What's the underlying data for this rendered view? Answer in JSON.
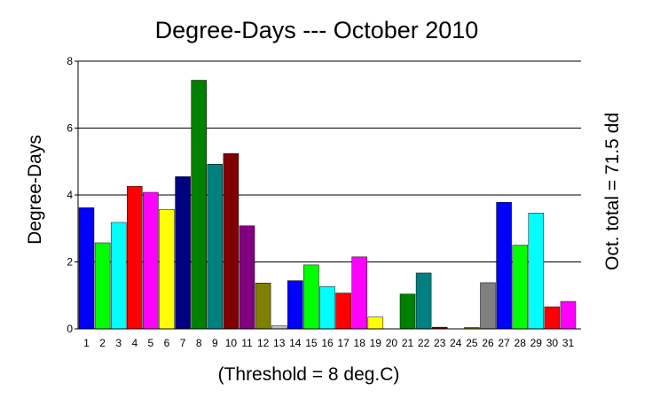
{
  "chart_data": {
    "type": "bar",
    "title": "Degree-Days --- October 2010",
    "ylabel": "Degree-Days",
    "xlabel": "(Threshold = 8 deg.C)",
    "right_label": "Oct. total = 71.5 dd",
    "ylim": [
      0,
      8
    ],
    "yticks": [
      0,
      2,
      4,
      6,
      8
    ],
    "grid": true,
    "categories": [
      "1",
      "2",
      "3",
      "4",
      "5",
      "6",
      "7",
      "8",
      "9",
      "10",
      "11",
      "12",
      "13",
      "14",
      "15",
      "16",
      "17",
      "18",
      "19",
      "20",
      "21",
      "22",
      "23",
      "24",
      "25",
      "26",
      "27",
      "28",
      "29",
      "30",
      "31"
    ],
    "values": [
      3.62,
      2.57,
      3.18,
      4.26,
      4.08,
      3.57,
      4.55,
      7.43,
      4.92,
      5.24,
      3.08,
      1.37,
      0.09,
      1.44,
      1.91,
      1.26,
      1.07,
      2.15,
      0.35,
      0,
      1.04,
      1.67,
      0.05,
      0,
      0.04,
      1.38,
      3.78,
      2.5,
      3.46,
      0.66,
      0.82
    ],
    "colors": [
      "#0000ff",
      "#00ff00",
      "#00ffff",
      "#ff0000",
      "#ff00ff",
      "#ffff00",
      "#000080",
      "#008000",
      "#008080",
      "#800000",
      "#800080",
      "#808000",
      "#c0c0c0",
      "#0000ff",
      "#00ff00",
      "#00ffff",
      "#ff0000",
      "#ff00ff",
      "#ffff00",
      "#000080",
      "#008000",
      "#008080",
      "#800000",
      "#800080",
      "#808000",
      "#808080",
      "#0000ff",
      "#00ff00",
      "#00ffff",
      "#ff0000",
      "#ff00ff"
    ]
  }
}
